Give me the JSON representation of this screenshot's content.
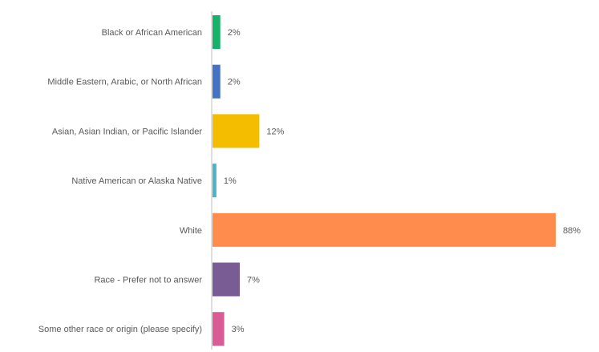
{
  "chart_data": {
    "type": "bar",
    "orientation": "horizontal",
    "categories": [
      "Black or African American",
      "Middle Eastern, Arabic, or North African",
      "Asian, Asian Indian, or Pacific Islander",
      "Native American or Alaska Native",
      "White",
      "Race - Prefer not to answer",
      "Some other race or origin (please specify)"
    ],
    "values": [
      2,
      2,
      12,
      1,
      88,
      7,
      3
    ],
    "value_labels": [
      "2%",
      "2%",
      "12%",
      "1%",
      "88%",
      "7%",
      "3%"
    ],
    "colors": [
      "#17b26a",
      "#4472c4",
      "#f5bd00",
      "#4bb4c8",
      "#ff8c4c",
      "#7a5c94",
      "#d95c94"
    ],
    "title": "",
    "xlabel": "",
    "ylabel": "",
    "xlim": [
      0,
      88
    ],
    "grid": false,
    "legend": "none"
  }
}
